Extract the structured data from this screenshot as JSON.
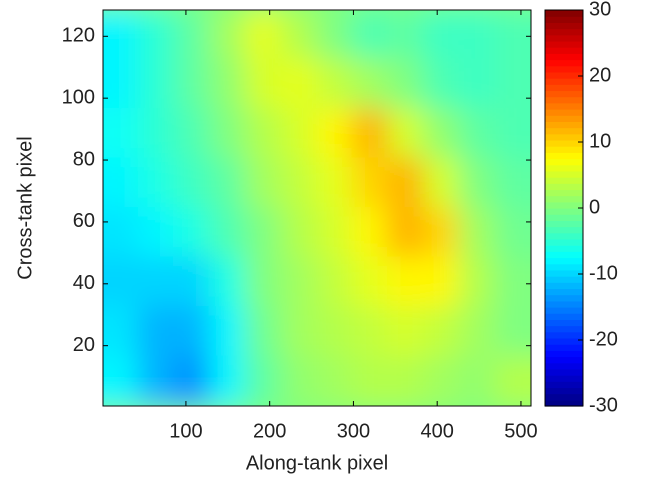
{
  "chart_data": {
    "type": "heatmap",
    "xlabel": "Along-tank pixel",
    "ylabel": "Cross-tank pixel",
    "xlim": [
      1,
      512
    ],
    "ylim": [
      0.5,
      128.5
    ],
    "xticks": [
      100,
      200,
      300,
      400,
      500
    ],
    "yticks": [
      20,
      40,
      60,
      80,
      100,
      120
    ],
    "colormap": "jet",
    "clim": [
      -30,
      30
    ],
    "cticks": [
      -30,
      -20,
      -10,
      0,
      10,
      20,
      30
    ],
    "z": [
      [
        -8,
        -5,
        -2,
        2,
        6,
        3,
        0,
        -3,
        -2,
        -4,
        -4,
        -3
      ],
      [
        -8,
        -5,
        -2,
        1,
        5,
        6,
        4,
        2,
        0,
        -3,
        -4,
        -3
      ],
      [
        -7,
        -5,
        -3,
        0,
        3,
        5,
        8,
        12,
        5,
        1,
        -2,
        -3
      ],
      [
        -8,
        -6,
        -4,
        -2,
        2,
        4,
        6,
        10,
        12,
        5,
        0,
        -2
      ],
      [
        -9,
        -8,
        -6,
        -3,
        0,
        3,
        5,
        8,
        12,
        10,
        2,
        -1
      ],
      [
        -10,
        -10,
        -10,
        -6,
        0,
        2,
        4,
        6,
        8,
        8,
        3,
        0
      ],
      [
        -9,
        -12,
        -12,
        -8,
        -1,
        2,
        3,
        4,
        5,
        4,
        2,
        0
      ],
      [
        -8,
        -12,
        -14,
        -8,
        -2,
        1,
        2,
        3,
        3,
        2,
        1,
        3
      ]
    ]
  }
}
